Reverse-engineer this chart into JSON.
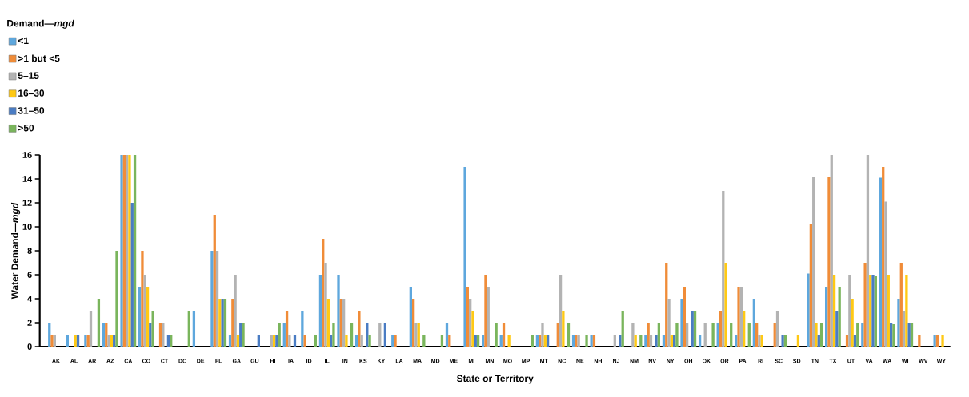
{
  "chart_data": {
    "type": "bar",
    "xlabel": "State or Territory",
    "ylabel": "Water Demand—*mgd*",
    "legend_title": "Demand—*mgd*",
    "categories": [
      "AK",
      "AL",
      "AR",
      "AZ",
      "CA",
      "CO",
      "CT",
      "DC",
      "DE",
      "FL",
      "GA",
      "GU",
      "HI",
      "IA",
      "ID",
      "IL",
      "IN",
      "KS",
      "KY",
      "LA",
      "MA",
      "MD",
      "ME",
      "MI",
      "MN",
      "MO",
      "MP",
      "MT",
      "NC",
      "NE",
      "NH",
      "NJ",
      "NM",
      "NV",
      "NY",
      "OH",
      "OK",
      "OR",
      "PA",
      "RI",
      "SC",
      "SD",
      "TN",
      "TX",
      "UT",
      "VA",
      "WA",
      "WI",
      "WV",
      "WY"
    ],
    "series": [
      {
        "name": "<1",
        "color": "#5ea7dd",
        "values": [
          2,
          1,
          1,
          2,
          16,
          5,
          null,
          null,
          3,
          8,
          1,
          null,
          null,
          2,
          3,
          6,
          6,
          1,
          null,
          1,
          5,
          null,
          2,
          15,
          1,
          1,
          null,
          1,
          null,
          1,
          1,
          null,
          null,
          1,
          1,
          4,
          1,
          2,
          1,
          4,
          null,
          null,
          6.1,
          5,
          null,
          2,
          14.1,
          4,
          null,
          1
        ]
      },
      {
        "name": ">1 but <5",
        "color": "#f08c38",
        "values": [
          1,
          null,
          1,
          2,
          16,
          8,
          2,
          null,
          null,
          11,
          4,
          null,
          null,
          3,
          1,
          9,
          4,
          3,
          null,
          1,
          4,
          null,
          1,
          5,
          6,
          2,
          null,
          1,
          2,
          1,
          1,
          null,
          null,
          2,
          7,
          5,
          null,
          3,
          5,
          2,
          2,
          null,
          10.2,
          14.2,
          1,
          7,
          15,
          7,
          1,
          1
        ]
      },
      {
        "name": "5–15",
        "color": "#b3b3b3",
        "values": [
          1,
          null,
          3,
          1,
          16,
          6,
          2,
          null,
          null,
          8,
          6,
          null,
          1,
          1,
          null,
          7,
          4,
          1,
          2,
          null,
          2,
          null,
          null,
          4,
          5,
          null,
          null,
          2,
          6,
          1,
          null,
          1,
          2,
          1,
          4,
          2,
          2,
          13,
          5,
          1,
          3,
          null,
          14.2,
          16,
          6,
          16,
          12.1,
          3,
          null,
          null
        ]
      },
      {
        "name": "16–30",
        "color": "#ffc914",
        "values": [
          null,
          1,
          null,
          1,
          16,
          5,
          null,
          null,
          null,
          4,
          1,
          null,
          1,
          null,
          null,
          4,
          1,
          null,
          null,
          null,
          2,
          null,
          null,
          3,
          null,
          1,
          null,
          1,
          3,
          null,
          null,
          null,
          1,
          null,
          1,
          null,
          null,
          7,
          3,
          1,
          null,
          1,
          2,
          6,
          4,
          6,
          6,
          6,
          null,
          1
        ]
      },
      {
        "name": "31–50",
        "color": "#4a7cc3",
        "values": [
          null,
          1,
          null,
          1,
          12,
          2,
          1,
          null,
          null,
          4,
          2,
          1,
          1,
          1,
          null,
          1,
          null,
          2,
          2,
          null,
          null,
          null,
          null,
          1,
          null,
          null,
          null,
          1,
          null,
          null,
          null,
          1,
          null,
          1,
          1,
          3,
          null,
          null,
          null,
          null,
          1,
          null,
          1,
          3,
          1,
          6,
          2,
          2,
          null,
          null
        ]
      },
      {
        "name": ">50",
        "color": "#7ab55c",
        "values": [
          null,
          null,
          4,
          8,
          16,
          3,
          1,
          3,
          null,
          4,
          2,
          null,
          2,
          null,
          1,
          2,
          2,
          1,
          null,
          null,
          1,
          1,
          null,
          1,
          2,
          null,
          1,
          null,
          2,
          1,
          null,
          3,
          1,
          2,
          2,
          3,
          2,
          2,
          2,
          null,
          1,
          null,
          2,
          5,
          2,
          5.9,
          1.9,
          2,
          null,
          null
        ]
      }
    ],
    "ylim": [
      0,
      16
    ],
    "yticks": [
      0,
      2,
      4,
      6,
      8,
      10,
      12,
      14,
      16
    ],
    "grid": false,
    "legend": "top left"
  }
}
